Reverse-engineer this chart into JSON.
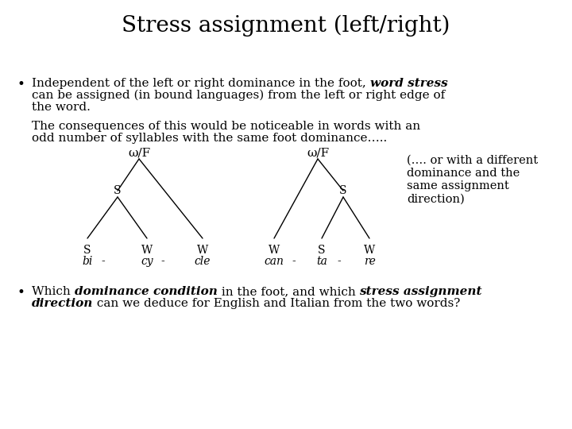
{
  "title": "Stress assignment (left/right)",
  "title_fontsize": 20,
  "bg_color": "#ffffff",
  "text_color": "#000000",
  "tree1_label": "ω/F",
  "tree2_label": "ω/F",
  "side_note": "(…. or with a different\ndominance and the\nsame assignment\ndirection)",
  "font_size_body": 11,
  "font_size_tree": 11
}
